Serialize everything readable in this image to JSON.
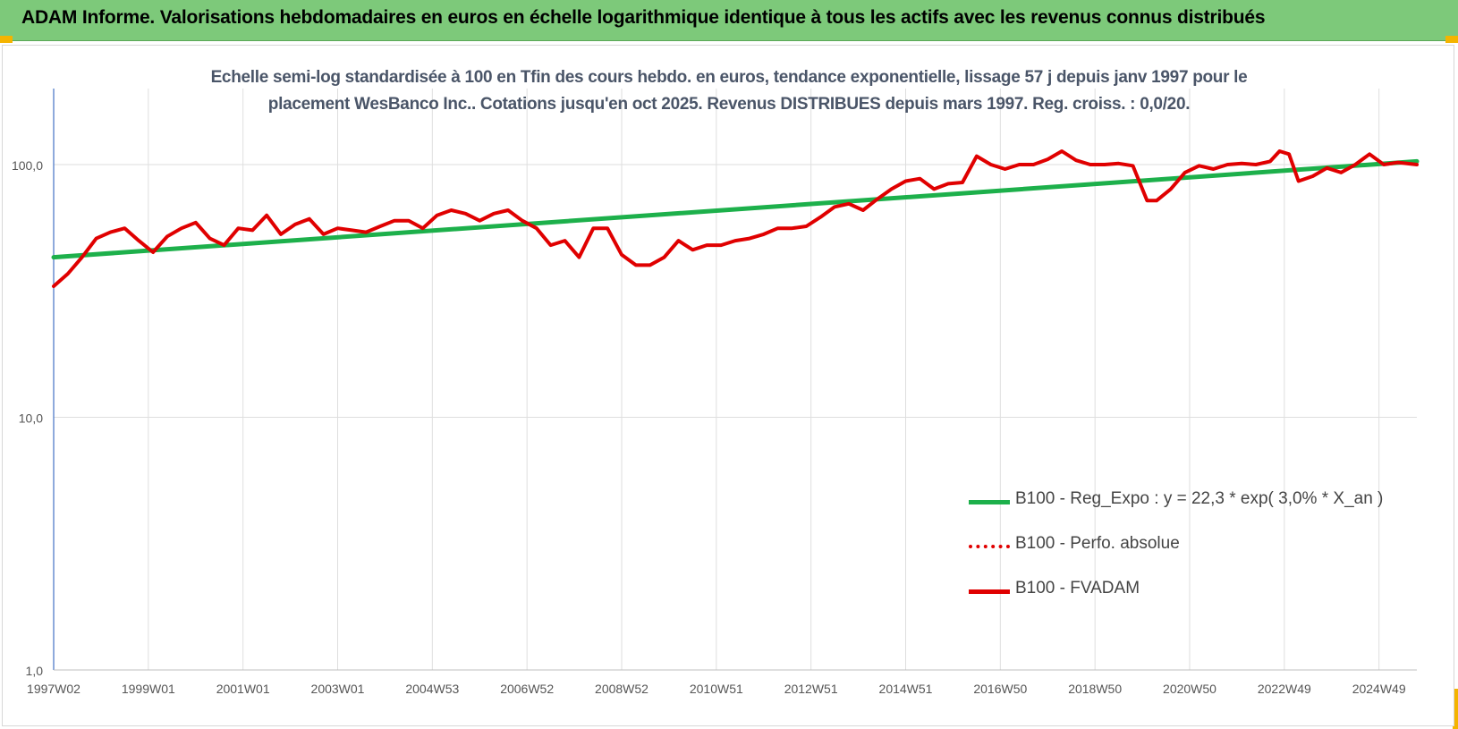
{
  "banner": {
    "title": "ADAM Informe. Valorisations hebdomadaires en euros en échelle logarithmique identique à tous les actifs avec les revenus connus distribués",
    "background": "#7dc97a"
  },
  "chart_data": {
    "type": "line",
    "title": "Echelle semi-log standardisée à 100 en Tfin des cours hebdo. en euros, tendance exponentielle, lissage 57 j depuis janv 1997 pour le placement WesBanco Inc.. Cotations jusqu'en oct 2025. Revenus DISTRIBUES depuis mars 1997. Reg. croiss. : 0,0/20.",
    "title_lines": [
      "Echelle semi-log standardisée à 100 en Tfin des cours hebdo. en euros, tendance exponentielle, lissage 57 j depuis janv 1997 pour le",
      "placement WesBanco Inc.. Cotations jusqu'en oct 2025. Revenus DISTRIBUES depuis mars 1997. Reg. croiss. : 0,0/20."
    ],
    "y_scale": "log",
    "ylim": [
      1,
      200
    ],
    "y_ticks": [
      1,
      10,
      100
    ],
    "y_tick_labels": [
      "1,0",
      "10,0",
      "100,0"
    ],
    "xlim": [
      1997.0,
      2025.8
    ],
    "x_ticks": [
      1997.0,
      1999.0,
      2001.0,
      2003.0,
      2005.0,
      2007.0,
      2009.0,
      2011.0,
      2013.0,
      2015.0,
      2017.0,
      2019.0,
      2021.0,
      2023.0,
      2025.0
    ],
    "x_tick_labels": [
      "1997W02",
      "1999W01",
      "2001W01",
      "2003W01",
      "2004W53",
      "2006W52",
      "2008W52",
      "2010W51",
      "2012W51",
      "2014W51",
      "2016W50",
      "2018W50",
      "2020W50",
      "2022W49",
      "2024W49"
    ],
    "grid": true,
    "legend_position": "bottom-right",
    "series": [
      {
        "name": "B100 - Reg_Expo : y = 22,3 * exp( 3,0% *  X_an )",
        "color": "#1db04b",
        "style": "solid",
        "x": [
          1997.0,
          2025.8
        ],
        "y": [
          43.0,
          103.0
        ]
      },
      {
        "name": "B100 - Perfo. absolue",
        "color": "#e00000",
        "style": "dotted",
        "x": [],
        "y": []
      },
      {
        "name": "B100 - FVADAM",
        "color": "#e00000",
        "style": "solid",
        "x": [
          1997.0,
          1997.3,
          1997.6,
          1997.9,
          1998.2,
          1998.5,
          1998.8,
          1999.1,
          1999.4,
          1999.7,
          2000.0,
          2000.3,
          2000.6,
          2000.9,
          2001.2,
          2001.5,
          2001.8,
          2002.1,
          2002.4,
          2002.7,
          2003.0,
          2003.3,
          2003.6,
          2003.9,
          2004.2,
          2004.5,
          2004.8,
          2005.1,
          2005.4,
          2005.7,
          2006.0,
          2006.3,
          2006.6,
          2006.9,
          2007.2,
          2007.5,
          2007.8,
          2008.1,
          2008.4,
          2008.7,
          2009.0,
          2009.3,
          2009.6,
          2009.9,
          2010.2,
          2010.5,
          2010.8,
          2011.1,
          2011.4,
          2011.7,
          2012.0,
          2012.3,
          2012.6,
          2012.9,
          2013.2,
          2013.5,
          2013.8,
          2014.1,
          2014.4,
          2014.7,
          2015.0,
          2015.3,
          2015.6,
          2015.9,
          2016.2,
          2016.5,
          2016.8,
          2017.1,
          2017.4,
          2017.7,
          2018.0,
          2018.3,
          2018.6,
          2018.9,
          2019.2,
          2019.5,
          2019.8,
          2020.1,
          2020.3,
          2020.6,
          2020.9,
          2021.2,
          2021.5,
          2021.8,
          2022.1,
          2022.4,
          2022.7,
          2022.9,
          2023.1,
          2023.3,
          2023.6,
          2023.9,
          2024.2,
          2024.5,
          2024.8,
          2025.1,
          2025.4,
          2025.8
        ],
        "y": [
          33,
          37,
          43,
          51,
          54,
          56,
          50,
          45,
          52,
          56,
          59,
          51,
          48,
          56,
          55,
          63,
          53,
          58,
          61,
          53,
          56,
          55,
          54,
          57,
          60,
          60,
          56,
          63,
          66,
          64,
          60,
          64,
          66,
          60,
          56,
          48,
          50,
          43,
          56,
          56,
          44,
          40,
          40,
          43,
          50,
          46,
          48,
          48,
          50,
          51,
          53,
          56,
          56,
          57,
          62,
          68,
          70,
          66,
          73,
          80,
          86,
          88,
          80,
          84,
          85,
          108,
          100,
          96,
          100,
          100,
          105,
          113,
          104,
          100,
          100,
          101,
          99,
          72,
          72,
          80,
          93,
          99,
          96,
          100,
          101,
          100,
          103,
          113,
          110,
          86,
          90,
          97,
          93,
          100,
          110,
          100,
          102,
          100
        ]
      }
    ]
  }
}
